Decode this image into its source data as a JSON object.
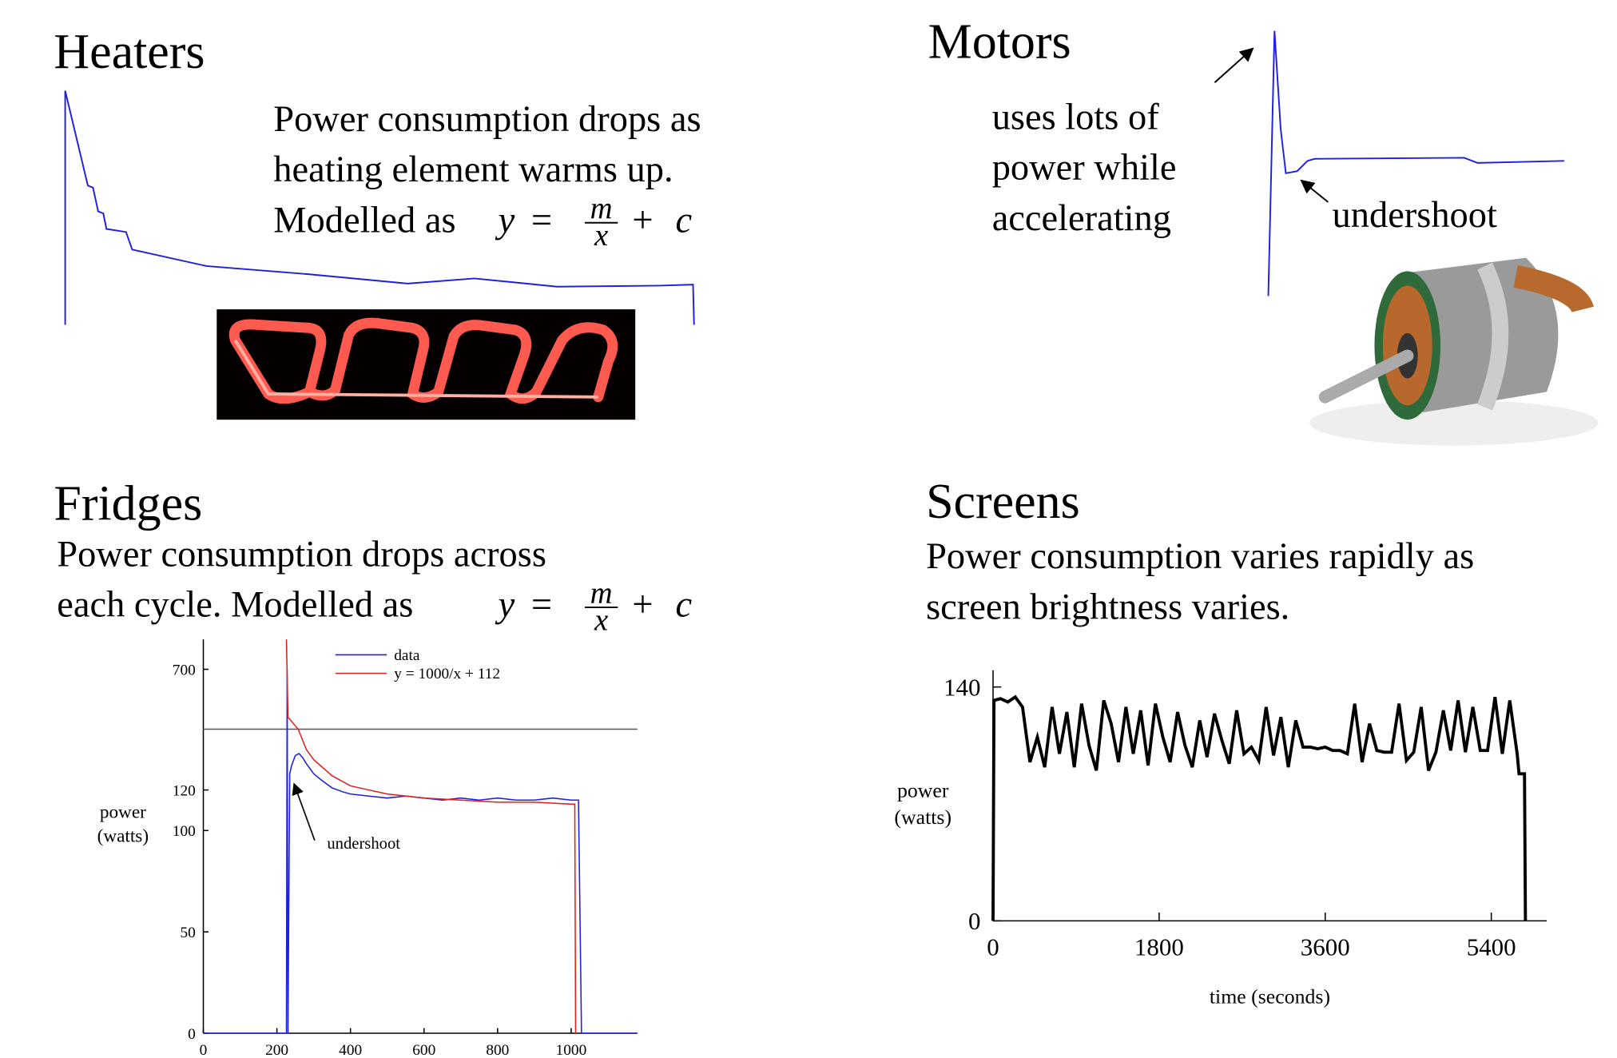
{
  "heaters": {
    "title": "Heaters",
    "lines": [
      "Power consumption drops as",
      "heating element warms up."
    ],
    "formula": {
      "lead": "Modelled as",
      "y": "y",
      "eq": "=",
      "num": "m",
      "den": "x",
      "plus": "+",
      "c": "c"
    }
  },
  "motors": {
    "title": "Motors",
    "lines": [
      "uses lots of",
      "power while",
      "accelerating"
    ],
    "annotation": "undershoot"
  },
  "fridges": {
    "title": "Fridges",
    "lines": [
      "Power consumption drops across"
    ],
    "formula": {
      "lead": "each cycle.  Modelled as",
      "y": "y",
      "eq": "=",
      "num": "m",
      "den": "x",
      "plus": "+",
      "c": "c"
    }
  },
  "screens": {
    "title": "Screens",
    "lines": [
      "Power consumption varies rapidly as",
      "screen brightness varies."
    ]
  },
  "chart_data": [
    {
      "type": "line",
      "ylabel": [
        "power",
        "(watts)"
      ],
      "annotation": "undershoot",
      "legend": "upper right",
      "xlim": [
        0,
        1180
      ],
      "xticks": [
        0,
        200,
        400,
        600,
        800,
        1000
      ],
      "ylim": [
        0,
        750
      ],
      "ybreak": [
        150,
        600
      ],
      "yticks": [
        0,
        50,
        100,
        120,
        700
      ],
      "series": [
        {
          "name": "data",
          "color": "#1f1fe0",
          "x": [
            0,
            100,
            200,
            222,
            226,
            228,
            230,
            235,
            240,
            250,
            260,
            270,
            280,
            300,
            320,
            350,
            380,
            400,
            450,
            500,
            550,
            600,
            650,
            700,
            750,
            800,
            850,
            900,
            950,
            1000,
            1015,
            1020,
            1024,
            1028,
            1100,
            1180
          ],
          "values": [
            0,
            0,
            0,
            0,
            0,
            700,
            0,
            128,
            132,
            137,
            138,
            136,
            133,
            128,
            125,
            121,
            119,
            118,
            117,
            116,
            117,
            116,
            115,
            116,
            115,
            116,
            115,
            115,
            116,
            115,
            115,
            115,
            60,
            0,
            0,
            0
          ]
        },
        {
          "name": "y = 1000/x + 112",
          "color": "#e02020",
          "x": [
            226,
            230,
            258,
            280,
            300,
            350,
            400,
            500,
            600,
            700,
            800,
            900,
            1000,
            1010,
            1012
          ],
          "values": [
            750,
            620,
            150,
            140,
            135,
            127,
            122,
            118,
            116,
            115,
            114,
            114,
            113,
            113,
            0
          ]
        }
      ]
    },
    {
      "type": "line",
      "ylabel": [
        "power",
        "(watts)"
      ],
      "xlabel": "time (seconds)",
      "xlim": [
        0,
        6000
      ],
      "xticks": [
        0,
        1800,
        3600,
        5400
      ],
      "ylim": [
        0,
        150
      ],
      "yticks": [
        0,
        140
      ],
      "series": [
        {
          "name": null,
          "color": "#000000",
          "x": [
            0,
            10,
            80,
            160,
            240,
            320,
            400,
            480,
            560,
            640,
            720,
            800,
            880,
            960,
            1040,
            1120,
            1200,
            1280,
            1360,
            1440,
            1520,
            1600,
            1680,
            1760,
            1840,
            1920,
            2000,
            2080,
            2160,
            2240,
            2320,
            2400,
            2480,
            2560,
            2640,
            2720,
            2800,
            2880,
            2960,
            3040,
            3120,
            3200,
            3280,
            3360,
            3440,
            3520,
            3600,
            3680,
            3760,
            3840,
            3920,
            4000,
            4080,
            4160,
            4240,
            4320,
            4400,
            4480,
            4560,
            4640,
            4720,
            4800,
            4880,
            4960,
            5040,
            5120,
            5200,
            5280,
            5360,
            5440,
            5520,
            5600,
            5680,
            5700,
            5760,
            5770
          ],
          "values": [
            0,
            132,
            133,
            131,
            134,
            128,
            95,
            110,
            92,
            128,
            100,
            125,
            92,
            130,
            105,
            90,
            132,
            118,
            95,
            128,
            100,
            126,
            93,
            130,
            110,
            95,
            125,
            105,
            92,
            120,
            98,
            124,
            108,
            94,
            126,
            100,
            104,
            96,
            128,
            99,
            122,
            92,
            120,
            104,
            104,
            103,
            104,
            102,
            102,
            100,
            130,
            95,
            118,
            102,
            101,
            101,
            130,
            96,
            101,
            128,
            90,
            101,
            126,
            102,
            132,
            101,
            128,
            102,
            102,
            134,
            100,
            132,
            100,
            88,
            88,
            0
          ]
        }
      ]
    }
  ]
}
